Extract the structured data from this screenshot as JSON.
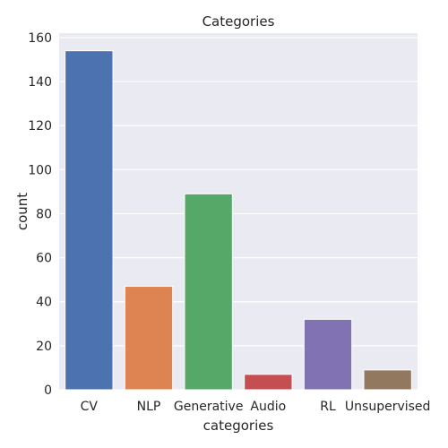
{
  "chart_data": {
    "type": "bar",
    "title": "Categories",
    "xlabel": "categories",
    "ylabel": "count",
    "categories": [
      "CV",
      "NLP",
      "Generative",
      "Audio",
      "RL",
      "Unsupervised"
    ],
    "values": [
      154,
      47,
      89,
      7,
      32,
      9
    ],
    "colors": [
      "#4c72b0",
      "#dd8452",
      "#55a868",
      "#c44e52",
      "#8172b3",
      "#937860"
    ],
    "ylim": [
      0,
      162
    ],
    "yticks": [
      0,
      20,
      40,
      60,
      80,
      100,
      120,
      140,
      160
    ],
    "grid": true,
    "background": "#eaeaf2",
    "grid_color": "#ffffff"
  }
}
